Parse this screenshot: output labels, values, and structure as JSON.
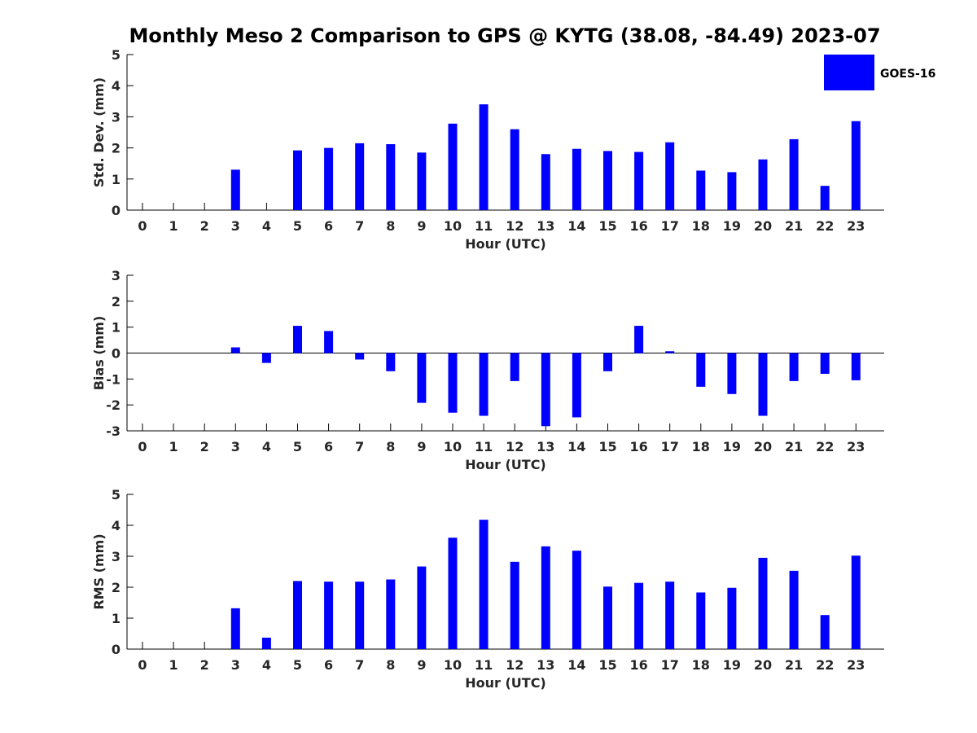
{
  "figure": {
    "title": "Monthly Meso 2 Comparison to GPS @ KYTG (38.08, -84.49) 2023-07"
  },
  "legend": {
    "label": "GOES-16",
    "color": "#0000ff",
    "placement": "top-right"
  },
  "colors": {
    "bar": "#0000ff",
    "axis": "#000000",
    "text": "#262626"
  },
  "chart_data": [
    {
      "type": "bar",
      "title": "Monthly Meso 2 Comparison to GPS @ KYTG (38.08, -84.49) 2023-07",
      "xlabel": "Hour (UTC)",
      "ylabel": "Std. Dev. (mm)",
      "categories": [
        "0",
        "1",
        "2",
        "3",
        "4",
        "5",
        "6",
        "7",
        "8",
        "9",
        "10",
        "11",
        "12",
        "13",
        "14",
        "15",
        "16",
        "17",
        "18",
        "19",
        "20",
        "21",
        "22",
        "23"
      ],
      "ylim": [
        0,
        5
      ],
      "yticks": [
        "0",
        "1",
        "2",
        "3",
        "4",
        "5"
      ],
      "series": [
        {
          "name": "GOES-16",
          "values": [
            null,
            null,
            null,
            1.3,
            null,
            1.92,
            2.0,
            2.15,
            2.12,
            1.85,
            2.78,
            3.4,
            2.6,
            1.8,
            1.97,
            1.9,
            1.87,
            2.18,
            1.27,
            1.22,
            1.63,
            2.28,
            0.78,
            2.86
          ]
        }
      ]
    },
    {
      "type": "bar",
      "xlabel": "Hour (UTC)",
      "ylabel": "Bias (mm)",
      "categories": [
        "0",
        "1",
        "2",
        "3",
        "4",
        "5",
        "6",
        "7",
        "8",
        "9",
        "10",
        "11",
        "12",
        "13",
        "14",
        "15",
        "16",
        "17",
        "18",
        "19",
        "20",
        "21",
        "22",
        "23"
      ],
      "ylim": [
        -3,
        3
      ],
      "yticks": [
        "-3",
        "-2",
        "-1",
        "0",
        "1",
        "2",
        "3"
      ],
      "series": [
        {
          "name": "GOES-16",
          "values": [
            null,
            null,
            null,
            0.22,
            -0.38,
            1.05,
            0.85,
            -0.25,
            -0.7,
            -1.92,
            -2.3,
            -2.42,
            -1.08,
            -2.82,
            -2.48,
            -0.7,
            1.05,
            0.07,
            -1.3,
            -1.58,
            -2.42,
            -1.08,
            -0.8,
            -1.05
          ]
        }
      ]
    },
    {
      "type": "bar",
      "xlabel": "Hour (UTC)",
      "ylabel": "RMS (mm)",
      "categories": [
        "0",
        "1",
        "2",
        "3",
        "4",
        "5",
        "6",
        "7",
        "8",
        "9",
        "10",
        "11",
        "12",
        "13",
        "14",
        "15",
        "16",
        "17",
        "18",
        "19",
        "20",
        "21",
        "22",
        "23"
      ],
      "ylim": [
        0,
        5
      ],
      "yticks": [
        "0",
        "1",
        "2",
        "3",
        "4",
        "5"
      ],
      "series": [
        {
          "name": "GOES-16",
          "values": [
            null,
            null,
            null,
            1.32,
            0.37,
            2.2,
            2.18,
            2.18,
            2.25,
            2.67,
            3.6,
            4.18,
            2.82,
            3.32,
            3.18,
            2.02,
            2.14,
            2.18,
            1.83,
            1.98,
            2.95,
            2.53,
            1.1,
            3.02
          ]
        }
      ]
    }
  ]
}
